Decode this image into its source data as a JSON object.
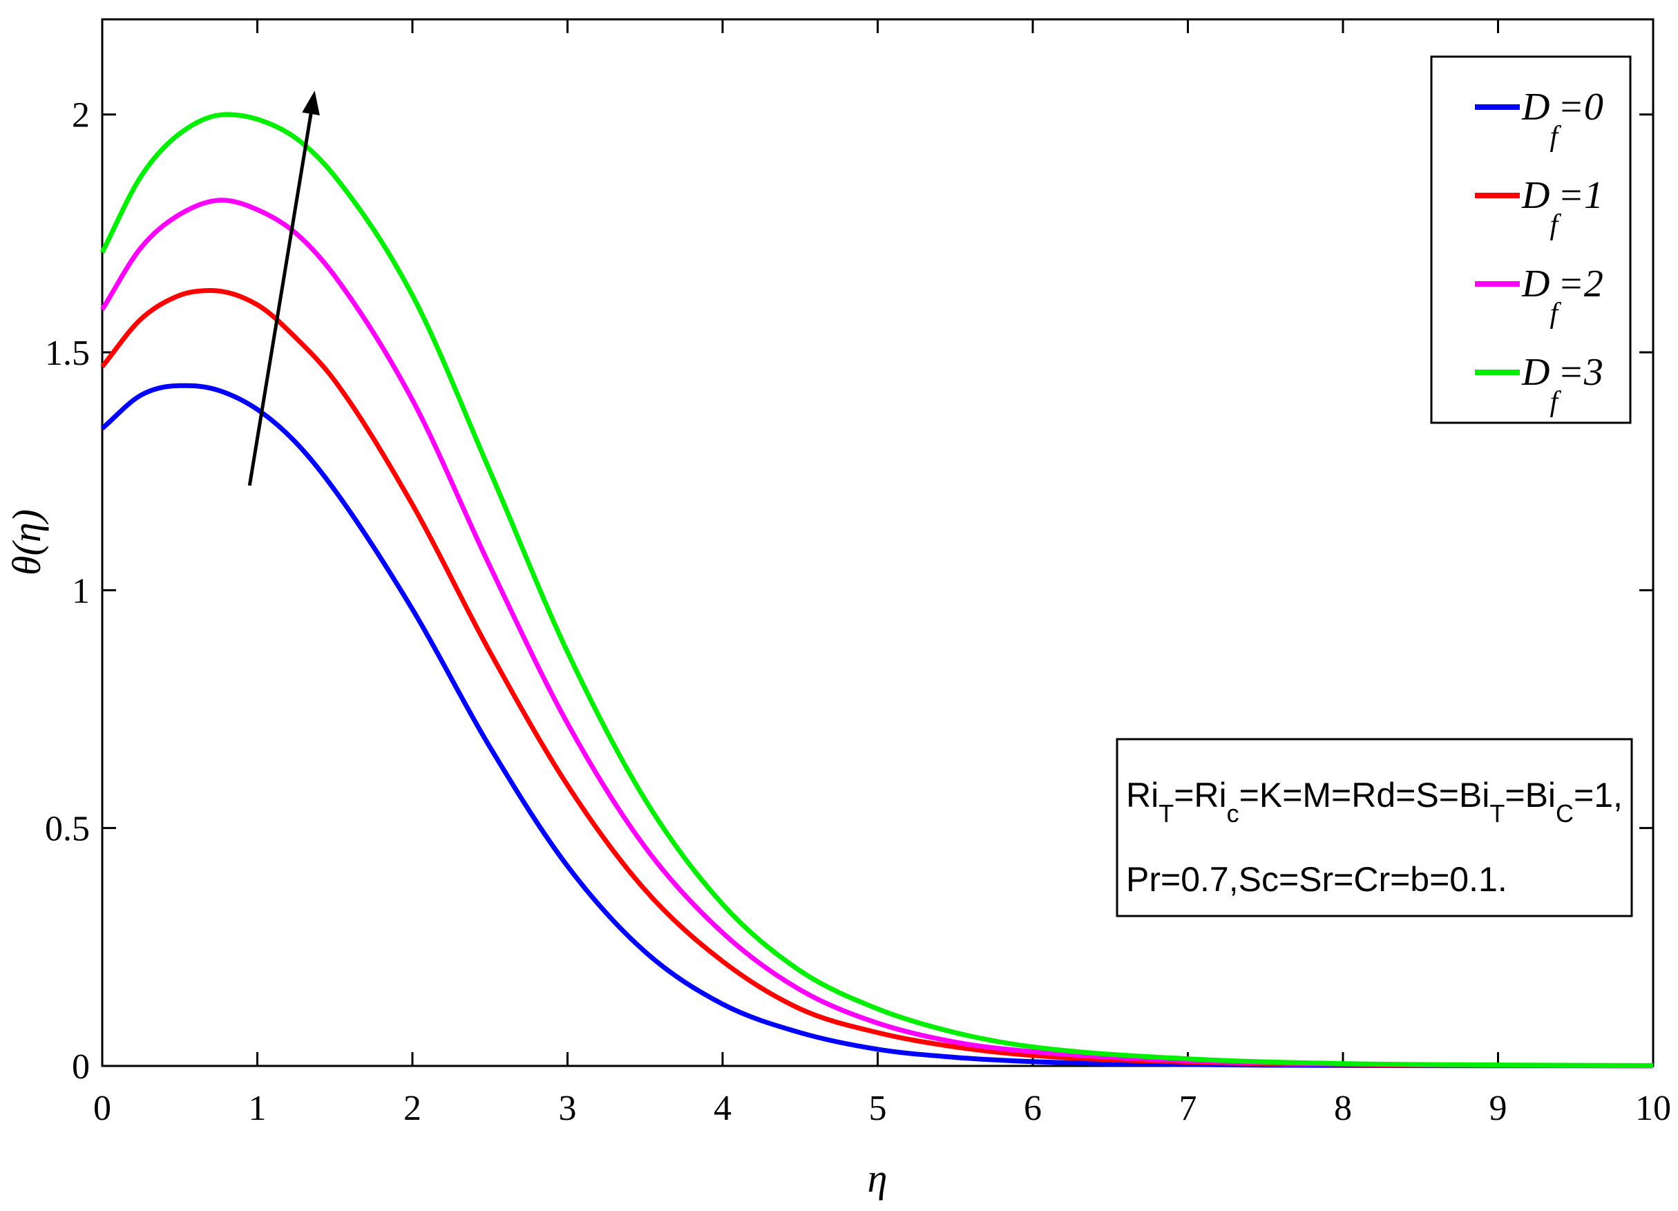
{
  "chart_data": {
    "type": "line",
    "xlabel": "η",
    "ylabel": "θ(η)",
    "xlim": [
      0,
      10
    ],
    "ylim": [
      0,
      2.2
    ],
    "xticks": [
      "0",
      "1",
      "2",
      "3",
      "4",
      "5",
      "6",
      "7",
      "8",
      "9",
      "10"
    ],
    "yticks": [
      "0",
      "0.5",
      "1",
      "1.5",
      "2"
    ],
    "grid": false,
    "legend_position": "top-right",
    "series": [
      {
        "name": "D_f=0",
        "legend_main": "D",
        "legend_sub": "f",
        "legend_value": "=0",
        "color": "#0000ff",
        "x": [
          0,
          0.25,
          0.5,
          0.55,
          0.75,
          1,
          1.25,
          1.5,
          2,
          2.5,
          3,
          3.5,
          4,
          4.5,
          5,
          5.5,
          6,
          7,
          8,
          9,
          10
        ],
        "y": [
          1.34,
          1.41,
          1.43,
          1.43,
          1.42,
          1.38,
          1.31,
          1.21,
          0.96,
          0.67,
          0.42,
          0.24,
          0.13,
          0.07,
          0.035,
          0.018,
          0.009,
          0.003,
          0.001,
          0.0005,
          0.0002
        ]
      },
      {
        "name": "D_f=1",
        "legend_main": "D",
        "legend_sub": "f",
        "legend_value": "=1",
        "color": "#ff0000",
        "x": [
          0,
          0.25,
          0.5,
          0.7,
          1,
          1.25,
          1.5,
          2,
          2.5,
          3,
          3.5,
          4,
          4.5,
          5,
          5.5,
          6,
          7,
          8,
          9,
          10
        ],
        "y": [
          1.47,
          1.57,
          1.62,
          1.63,
          1.6,
          1.53,
          1.44,
          1.18,
          0.87,
          0.59,
          0.37,
          0.22,
          0.12,
          0.07,
          0.04,
          0.022,
          0.008,
          0.003,
          0.001,
          0.0005
        ]
      },
      {
        "name": "D_f=2",
        "legend_main": "D",
        "legend_sub": "f",
        "legend_value": "=2",
        "color": "#ff00ff",
        "x": [
          0,
          0.25,
          0.5,
          0.77,
          1,
          1.25,
          1.5,
          2,
          2.5,
          3,
          3.5,
          4,
          4.5,
          5,
          5.5,
          6,
          7,
          8,
          9,
          10
        ],
        "y": [
          1.59,
          1.72,
          1.79,
          1.82,
          1.8,
          1.75,
          1.66,
          1.4,
          1.05,
          0.72,
          0.46,
          0.28,
          0.16,
          0.09,
          0.05,
          0.03,
          0.011,
          0.004,
          0.0015,
          0.0005
        ]
      },
      {
        "name": "D_f=3",
        "legend_main": "D",
        "legend_sub": "f",
        "legend_value": "=3",
        "color": "#00ee00",
        "x": [
          0,
          0.25,
          0.5,
          0.8,
          1,
          1.25,
          1.5,
          2,
          2.5,
          3,
          3.5,
          4,
          4.5,
          5,
          5.5,
          6,
          7,
          8,
          9,
          10
        ],
        "y": [
          1.71,
          1.87,
          1.96,
          2.0,
          1.99,
          1.95,
          1.87,
          1.62,
          1.25,
          0.87,
          0.56,
          0.34,
          0.2,
          0.12,
          0.07,
          0.04,
          0.015,
          0.005,
          0.002,
          0.0007
        ]
      }
    ],
    "annotations": {
      "arrow": {
        "from": [
          0.95,
          1.22
        ],
        "to": [
          1.37,
          2.05
        ]
      },
      "params_box": {
        "line1": [
          {
            "t": "Ri"
          },
          {
            "t": "T",
            "sub": true
          },
          {
            "t": "=Ri"
          },
          {
            "t": "c",
            "sub": true
          },
          {
            "t": "=K=M=Rd=S=Bi"
          },
          {
            "t": "T",
            "sub": true
          },
          {
            "t": "=Bi"
          },
          {
            "t": "C",
            "sub": true
          },
          {
            "t": "=1,"
          }
        ],
        "line2": "Pr=0.7,Sc=Sr=Cr=b=0.1."
      }
    }
  }
}
